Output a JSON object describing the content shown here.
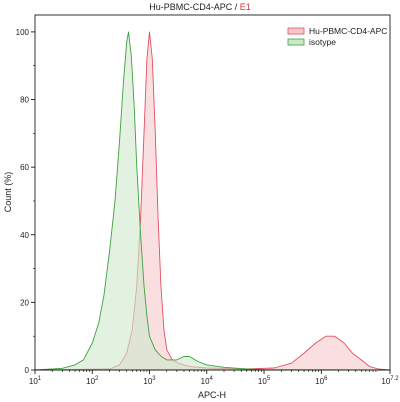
{
  "chart_data": {
    "type": "area",
    "title_main": "Hu-PBMC-CD4-APC",
    "title_sep": " / ",
    "title_gate": "E1",
    "xlabel": "APC-H",
    "ylabel": "Count  (%)",
    "x_scale": "log",
    "xlim": [
      10,
      15848932
    ],
    "ylim": [
      0,
      105
    ],
    "x_ticks": [
      {
        "v": 10,
        "base": "10",
        "exp": "1"
      },
      {
        "v": 100,
        "base": "10",
        "exp": "2"
      },
      {
        "v": 1000,
        "base": "10",
        "exp": "3"
      },
      {
        "v": 10000,
        "base": "10",
        "exp": "4"
      },
      {
        "v": 100000,
        "base": "10",
        "exp": "5"
      },
      {
        "v": 1000000,
        "base": "10",
        "exp": "6"
      },
      {
        "v": 15848932,
        "base": "10",
        "exp": "7.2"
      }
    ],
    "y_ticks": [
      "0",
      "20",
      "40",
      "60",
      "80",
      "100"
    ],
    "legend_position": "top-right",
    "colors": {
      "title_gate": "#e03030",
      "frame": "#000000"
    },
    "series": [
      {
        "name": "Hu-PBMC-CD4-APC",
        "stroke": "#e05060",
        "fill": "#f7c9cc",
        "points": [
          [
            10,
            0
          ],
          [
            200,
            0.3
          ],
          [
            300,
            1.5
          ],
          [
            400,
            5
          ],
          [
            500,
            12
          ],
          [
            600,
            25
          ],
          [
            700,
            45
          ],
          [
            800,
            70
          ],
          [
            900,
            92
          ],
          [
            1000,
            100
          ],
          [
            1120,
            92
          ],
          [
            1260,
            70
          ],
          [
            1410,
            45
          ],
          [
            1580,
            25
          ],
          [
            1780,
            12
          ],
          [
            2000,
            6
          ],
          [
            2500,
            3
          ],
          [
            3200,
            2
          ],
          [
            5000,
            1
          ],
          [
            10000,
            0.6
          ],
          [
            50000,
            0.3
          ],
          [
            150000,
            0.6
          ],
          [
            300000,
            2
          ],
          [
            500000,
            5
          ],
          [
            800000,
            8
          ],
          [
            1200000,
            10
          ],
          [
            1700000,
            10
          ],
          [
            2500000,
            8
          ],
          [
            3500000,
            5
          ],
          [
            5000000,
            3
          ],
          [
            7000000,
            1
          ],
          [
            10000000,
            0.3
          ],
          [
            15848932,
            0
          ]
        ]
      },
      {
        "name": "isotype",
        "stroke": "#40a040",
        "fill": "#cfe8cc",
        "points": [
          [
            10,
            0
          ],
          [
            30,
            0.5
          ],
          [
            50,
            1.5
          ],
          [
            70,
            3
          ],
          [
            100,
            8
          ],
          [
            130,
            14
          ],
          [
            160,
            22
          ],
          [
            200,
            35
          ],
          [
            250,
            50
          ],
          [
            300,
            68
          ],
          [
            350,
            85
          ],
          [
            400,
            97
          ],
          [
            430,
            100
          ],
          [
            480,
            93
          ],
          [
            540,
            78
          ],
          [
            600,
            60
          ],
          [
            700,
            40
          ],
          [
            800,
            25
          ],
          [
            900,
            16
          ],
          [
            1000,
            10
          ],
          [
            1250,
            6
          ],
          [
            1600,
            4
          ],
          [
            2000,
            3
          ],
          [
            3000,
            3
          ],
          [
            4000,
            4
          ],
          [
            5000,
            4
          ],
          [
            7000,
            2.5
          ],
          [
            10000,
            1.5
          ],
          [
            20000,
            0.8
          ],
          [
            50000,
            0.3
          ],
          [
            100000,
            0.1
          ],
          [
            15848932,
            0
          ]
        ]
      }
    ]
  }
}
